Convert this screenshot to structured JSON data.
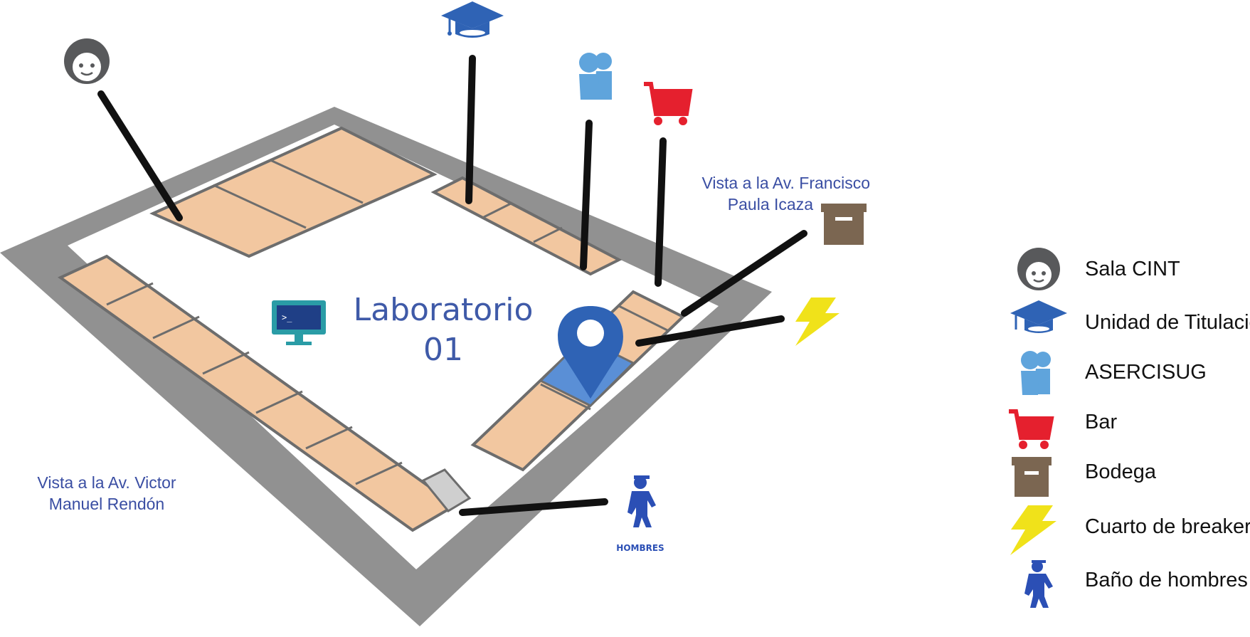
{
  "labels": {
    "street_top_right": [
      "Vista a la Av.  Francisco",
      "Paula Icaza"
    ],
    "street_bottom_left": [
      "Vista a la Av.  Victor",
      "Manuel Rendón"
    ],
    "lab_title_line1": "Laboratorio",
    "lab_title_line2": "01",
    "hombres_caption": "HOMBRES"
  },
  "legend": {
    "items": [
      {
        "label": "Sala CINT",
        "icon": "face-icon"
      },
      {
        "label": "Unidad de Titulación",
        "icon": "graduation-cap-icon"
      },
      {
        "label": "ASERCISUG",
        "icon": "people-icon"
      },
      {
        "label": "Bar",
        "icon": "shopping-cart-icon"
      },
      {
        "label": "Bodega",
        "icon": "storage-box-icon"
      },
      {
        "label": "Cuarto de breaker",
        "icon": "lightning-bolt-icon"
      },
      {
        "label": "Baño de hombres",
        "icon": "mens-restroom-icon"
      }
    ]
  },
  "colors": {
    "outer_wall": "#8b8b8b",
    "room_floor": "#f2c7a0",
    "highlight_room": "#5a8fd6",
    "pin": "#2f63b5",
    "face": "#58595b",
    "cap": "#2f63b5",
    "people": "#5fa4dc",
    "cart": "#e5202e",
    "box": "#7b6651",
    "bolt": "#f0e21a",
    "restroom": "#2b4fb5",
    "lab_icon": "#2a9ca6"
  }
}
